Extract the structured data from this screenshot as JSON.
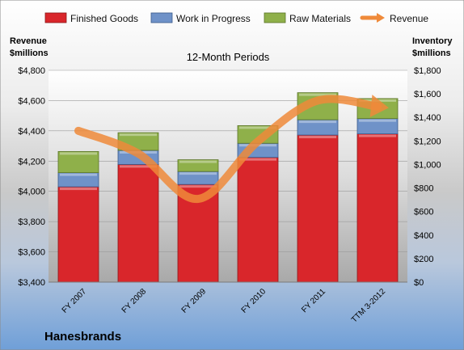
{
  "chart_data": {
    "type": "bar",
    "subtitle": "12-Month Periods",
    "company": "Hanesbrands",
    "categories": [
      "FY 2007",
      "FY 2008",
      "FY 2009",
      "FY 2010",
      "FY 2011",
      "TTM 3-2012"
    ],
    "left_axis": {
      "title_line1": "Revenue",
      "title_line2": "$millions",
      "range": [
        3400,
        4800
      ],
      "ticks": [
        "$3,400",
        "$3,600",
        "$3,800",
        "$4,000",
        "$4,200",
        "$4,400",
        "$4,600",
        "$4,800"
      ]
    },
    "right_axis": {
      "title_line1": "Inventory",
      "title_line2": "$millions",
      "range": [
        0,
        1800
      ],
      "ticks": [
        "$0",
        "$200",
        "$400",
        "$600",
        "$800",
        "$1,000",
        "$1,200",
        "$1,400",
        "$1,600",
        "$1,800"
      ]
    },
    "stacked_series": [
      {
        "name": "Finished Goods",
        "color": "#d9262b",
        "values": [
          810,
          1000,
          830,
          1060,
          1250,
          1260
        ]
      },
      {
        "name": "Work in Progress",
        "color": "#6f92c8",
        "values": [
          120,
          120,
          110,
          120,
          130,
          130
        ]
      },
      {
        "name": "Raw Materials",
        "color": "#8fb04a",
        "values": [
          180,
          150,
          100,
          150,
          230,
          170
        ]
      }
    ],
    "line_series": {
      "name": "Revenue",
      "color": "#ef8a3a",
      "axis": "left",
      "values": [
        4400,
        4250,
        3950,
        4330,
        4600,
        4560
      ]
    },
    "legend_position": "top"
  }
}
